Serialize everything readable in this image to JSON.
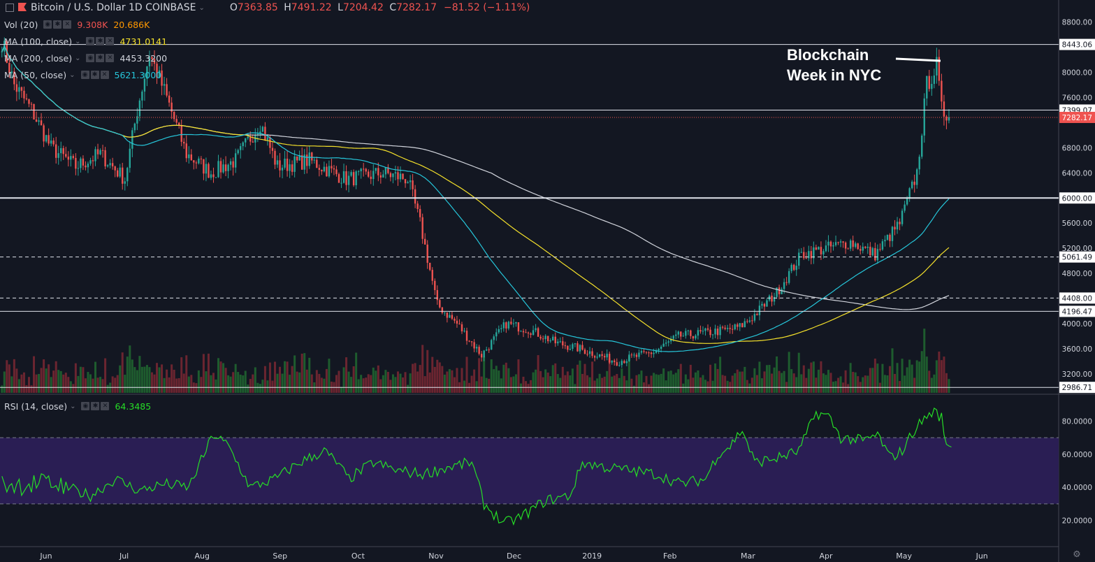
{
  "header": {
    "symbol": "Bitcoin / U.S. Dollar  1D  COINBASE",
    "open_label": "O",
    "open": "7363.85",
    "high_label": "H",
    "high": "7491.22",
    "low_label": "L",
    "low": "7204.42",
    "close_label": "C",
    "close": "7282.17",
    "change": "−81.52 (−1.11%)"
  },
  "indicators": [
    {
      "name": "Vol (20)",
      "v1": "9.308K",
      "v1_color": "#ef5350",
      "v2": "20.686K",
      "v2_color": "#ff9800"
    },
    {
      "name": "MA (100, close)",
      "v1": "4731.0141",
      "v1_color": "#f5e12b"
    },
    {
      "name": "MA (200, close)",
      "v1": "4453.3200",
      "v1_color": "#d1d4dc"
    },
    {
      "name": "MA (50, close)",
      "v1": "5621.3000",
      "v1_color": "#26c6da"
    }
  ],
  "rsi_legend": {
    "name": "RSI (14, close)",
    "value": "64.3485",
    "color": "#26de26"
  },
  "annotation": {
    "line1": "Blockchain",
    "line2": "Week in NYC"
  },
  "price_axis": {
    "ticks": [
      "8800.00",
      "8000.00",
      "7600.00",
      "6800.00",
      "6400.00",
      "5600.00",
      "5200.00",
      "4800.00",
      "4000.00",
      "3600.00",
      "3200.00"
    ],
    "tick_values": [
      8800,
      8000,
      7600,
      6800,
      6400,
      5600,
      5200,
      4800,
      4000,
      3600,
      3200
    ],
    "levels": [
      {
        "label": "8443.06",
        "value": 8443.06,
        "style": "solid"
      },
      {
        "label": "7399.07",
        "value": 7399.07,
        "style": "solid"
      },
      {
        "label": "6000.00",
        "value": 6000.0,
        "style": "solid"
      },
      {
        "label": "5061.49",
        "value": 5061.49,
        "style": "dashed"
      },
      {
        "label": "4408.00",
        "value": 4408.0,
        "style": "dashed"
      },
      {
        "label": "4196.47",
        "value": 4196.47,
        "style": "solid"
      },
      {
        "label": "2986.71",
        "value": 2986.71,
        "style": "solid"
      }
    ],
    "last_price_label": "7282.17"
  },
  "rsi_axis": {
    "ticks": [
      "80.0000",
      "60.0000",
      "40.0000",
      "20.0000"
    ],
    "tick_values": [
      80,
      60,
      40,
      20
    ],
    "upper_band": 70,
    "lower_band": 30
  },
  "time_axis": {
    "labels": [
      "Jun",
      "Jul",
      "Aug",
      "Sep",
      "Oct",
      "Nov",
      "Dec",
      "2019",
      "Feb",
      "Mar",
      "Apr",
      "May",
      "Jun"
    ]
  },
  "colors": {
    "up": "#26a69a",
    "down": "#ef5350",
    "up_vol": "#1e5c2e",
    "down_vol": "#6b2530",
    "ma50": "#26c6da",
    "ma100": "#f5e12b",
    "ma200": "#d1d4dc",
    "rsi": "#26de26",
    "rsi_band": "#2a1e54"
  },
  "chart_data": [
    {
      "type": "candlestick",
      "title": "Bitcoin / U.S. Dollar 1D COINBASE",
      "x": [
        "Jun",
        "Jul",
        "Aug",
        "Sep",
        "Oct",
        "Nov",
        "Dec",
        "2019",
        "Feb",
        "Mar",
        "Apr",
        "May",
        "Jun"
      ],
      "price_knots": [
        [
          0,
          8500
        ],
        [
          5,
          7800
        ],
        [
          12,
          7400
        ],
        [
          20,
          6800
        ],
        [
          30,
          6500
        ],
        [
          40,
          6700
        ],
        [
          50,
          6300
        ],
        [
          55,
          7400
        ],
        [
          60,
          8300
        ],
        [
          66,
          7700
        ],
        [
          75,
          6700
        ],
        [
          85,
          6400
        ],
        [
          95,
          6600
        ],
        [
          105,
          7200
        ],
        [
          112,
          6500
        ],
        [
          125,
          6600
        ],
        [
          140,
          6300
        ],
        [
          155,
          6400
        ],
        [
          165,
          6300
        ],
        [
          170,
          5600
        ],
        [
          177,
          4300
        ],
        [
          185,
          4000
        ],
        [
          195,
          3500
        ],
        [
          205,
          4000
        ],
        [
          215,
          3900
        ],
        [
          225,
          3700
        ],
        [
          235,
          3600
        ],
        [
          250,
          3400
        ],
        [
          265,
          3550
        ],
        [
          275,
          3800
        ],
        [
          285,
          3850
        ],
        [
          295,
          3900
        ],
        [
          300,
          3950
        ],
        [
          305,
          4100
        ],
        [
          315,
          4500
        ],
        [
          325,
          5100
        ],
        [
          335,
          5200
        ],
        [
          345,
          5300
        ],
        [
          355,
          5100
        ],
        [
          365,
          5600
        ],
        [
          372,
          6400
        ],
        [
          376,
          7800
        ],
        [
          380,
          8100
        ],
        [
          382,
          7400
        ],
        [
          385,
          7282
        ]
      ],
      "y_range": [
        2900,
        8950
      ],
      "moving_averages": [
        {
          "name": "MA (50, close)",
          "value": 5621.3
        },
        {
          "name": "MA (100, close)",
          "value": 4731.0141
        },
        {
          "name": "MA (200, close)",
          "value": 4453.32
        }
      ]
    },
    {
      "type": "bar",
      "name": "Vol (20)",
      "values_latest": [
        9.308,
        20.686
      ]
    },
    {
      "type": "line",
      "name": "RSI (14, close)",
      "y_range": [
        5,
        95
      ],
      "knots": [
        [
          0,
          40
        ],
        [
          10,
          35
        ],
        [
          20,
          45
        ],
        [
          30,
          38
        ],
        [
          40,
          42
        ],
        [
          50,
          40
        ],
        [
          60,
          72
        ],
        [
          66,
          65
        ],
        [
          75,
          40
        ],
        [
          85,
          45
        ],
        [
          95,
          55
        ],
        [
          105,
          62
        ],
        [
          110,
          55
        ],
        [
          115,
          45
        ],
        [
          125,
          55
        ],
        [
          135,
          50
        ],
        [
          145,
          48
        ],
        [
          155,
          52
        ],
        [
          165,
          55
        ],
        [
          170,
          30
        ],
        [
          178,
          18
        ],
        [
          185,
          22
        ],
        [
          195,
          32
        ],
        [
          205,
          35
        ],
        [
          210,
          55
        ],
        [
          220,
          52
        ],
        [
          230,
          50
        ],
        [
          240,
          48
        ],
        [
          250,
          42
        ],
        [
          260,
          45
        ],
        [
          265,
          60
        ],
        [
          270,
          65
        ],
        [
          275,
          75
        ],
        [
          280,
          55
        ],
        [
          290,
          58
        ],
        [
          298,
          62
        ],
        [
          305,
          85
        ],
        [
          310,
          83
        ],
        [
          315,
          70
        ],
        [
          325,
          68
        ],
        [
          330,
          72
        ],
        [
          335,
          58
        ],
        [
          340,
          62
        ],
        [
          345,
          75
        ],
        [
          350,
          83
        ],
        [
          353,
          86
        ],
        [
          356,
          82
        ],
        [
          358,
          66
        ],
        [
          360,
          64
        ]
      ],
      "latest": 64.3485
    }
  ]
}
